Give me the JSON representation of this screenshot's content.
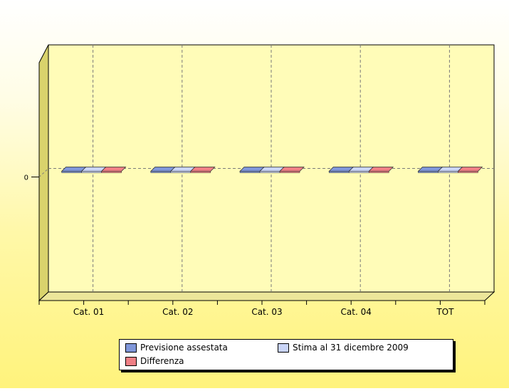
{
  "chart_data": {
    "type": "bar",
    "subtype": "3d-clustered",
    "categories": [
      "Cat. 01",
      "Cat. 02",
      "Cat. 03",
      "Cat. 04",
      "TOT"
    ],
    "series": [
      {
        "name": "Previsione assestata",
        "values": [
          0,
          0,
          0,
          0,
          0
        ],
        "color": "#7f96d9"
      },
      {
        "name": "Stima al 31 dicembre 2009",
        "values": [
          0,
          0,
          0,
          0,
          0
        ],
        "color": "#c9d4f7"
      },
      {
        "name": "Differenza",
        "values": [
          0,
          0,
          0,
          0,
          0
        ],
        "color": "#ef7f85"
      }
    ],
    "yticks": [
      "0"
    ],
    "ylim": [
      -1,
      1
    ],
    "grid": true,
    "legend_position": "bottom",
    "colors": {
      "plot_back": "#fffcb8",
      "wall_side": "#d9d36c",
      "floor": "#ece69a",
      "grid": "#7a7a7a"
    }
  }
}
